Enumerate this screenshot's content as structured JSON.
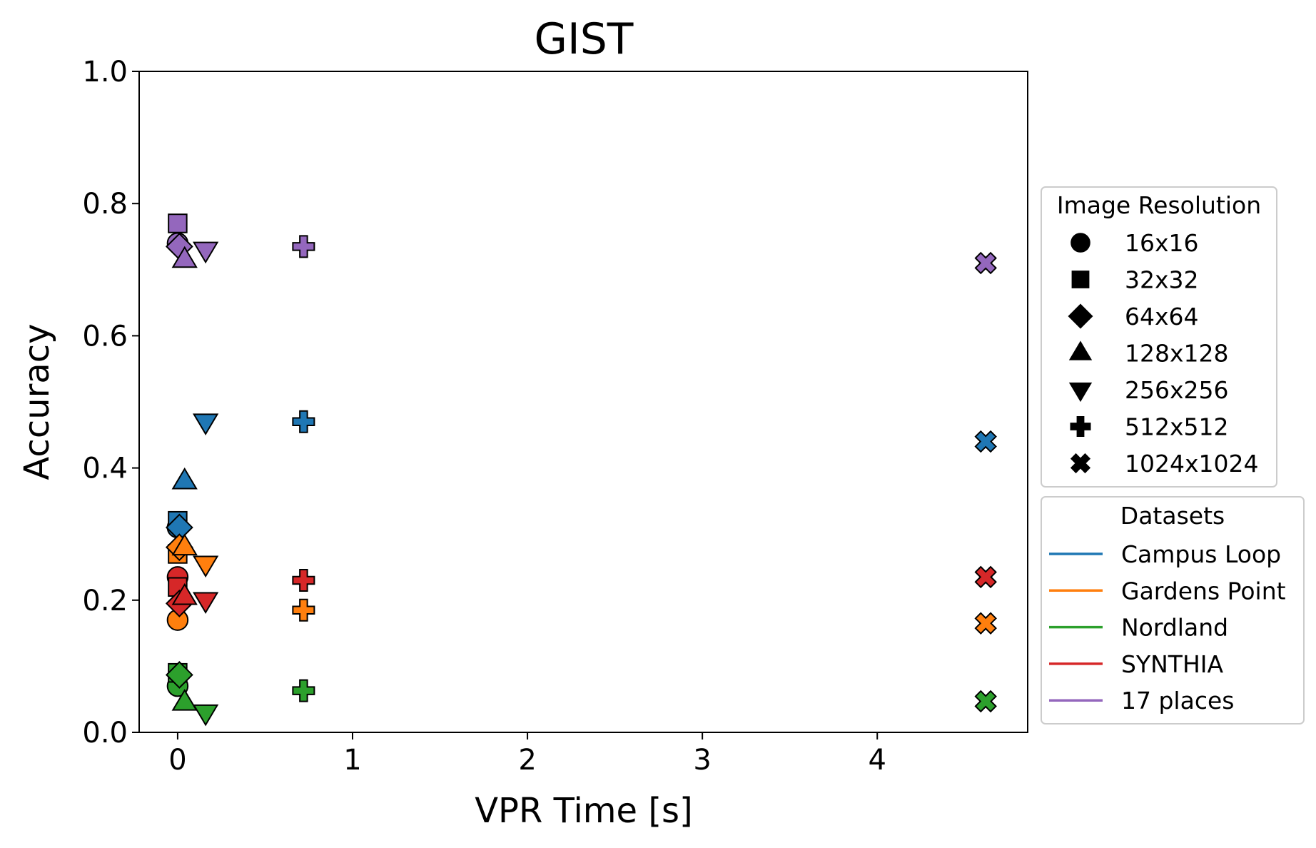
{
  "chart_data": {
    "type": "scatter",
    "title": "GIST",
    "xlabel": "VPR Time [s]",
    "ylabel": "Accuracy",
    "xlim": [
      -0.22,
      4.86
    ],
    "ylim": [
      0.0,
      1.0
    ],
    "xticks": [
      0,
      1,
      2,
      3,
      4
    ],
    "yticks": [
      0.0,
      0.2,
      0.4,
      0.6,
      0.8,
      1.0
    ],
    "xtick_labels": [
      "0",
      "1",
      "2",
      "3",
      "4"
    ],
    "ytick_labels": [
      "0.0",
      "0.2",
      "0.4",
      "0.6",
      "0.8",
      "1.0"
    ],
    "grid": false,
    "legend_resolution": {
      "title": "Image Resolution",
      "placement": "right",
      "entries": [
        {
          "label": "16x16",
          "marker": "circle"
        },
        {
          "label": "32x32",
          "marker": "square"
        },
        {
          "label": "64x64",
          "marker": "diamond"
        },
        {
          "label": "128x128",
          "marker": "triangle-up"
        },
        {
          "label": "256x256",
          "marker": "triangle-down"
        },
        {
          "label": "512x512",
          "marker": "plus"
        },
        {
          "label": "1024x1024",
          "marker": "x"
        }
      ]
    },
    "legend_datasets": {
      "title": "Datasets",
      "placement": "right",
      "entries": [
        {
          "label": "Campus Loop",
          "color": "#1f77b4"
        },
        {
          "label": "Gardens Point",
          "color": "#ff7f0e"
        },
        {
          "label": "Nordland",
          "color": "#2ca02c"
        },
        {
          "label": "SYNTHIA",
          "color": "#d62728"
        },
        {
          "label": "17 places",
          "color": "#9467bd"
        }
      ]
    },
    "series": [
      {
        "name": "Campus Loop",
        "color": "#1f77b4",
        "points": [
          {
            "resolution": "16x16",
            "marker": "circle",
            "x": 0.0,
            "y": 0.31
          },
          {
            "resolution": "32x32",
            "marker": "square",
            "x": 0.0,
            "y": 0.32
          },
          {
            "resolution": "64x64",
            "marker": "diamond",
            "x": 0.01,
            "y": 0.31
          },
          {
            "resolution": "128x128",
            "marker": "triangle-up",
            "x": 0.04,
            "y": 0.38
          },
          {
            "resolution": "256x256",
            "marker": "triangle-down",
            "x": 0.16,
            "y": 0.47
          },
          {
            "resolution": "512x512",
            "marker": "plus",
            "x": 0.72,
            "y": 0.47
          },
          {
            "resolution": "1024x1024",
            "marker": "x",
            "x": 4.62,
            "y": 0.44
          }
        ]
      },
      {
        "name": "17 places",
        "color": "#9467bd",
        "points": [
          {
            "resolution": "16x16",
            "marker": "circle",
            "x": 0.0,
            "y": 0.74
          },
          {
            "resolution": "32x32",
            "marker": "square",
            "x": 0.0,
            "y": 0.77
          },
          {
            "resolution": "64x64",
            "marker": "diamond",
            "x": 0.01,
            "y": 0.735
          },
          {
            "resolution": "128x128",
            "marker": "triangle-up",
            "x": 0.04,
            "y": 0.715
          },
          {
            "resolution": "256x256",
            "marker": "triangle-down",
            "x": 0.16,
            "y": 0.73
          },
          {
            "resolution": "512x512",
            "marker": "plus",
            "x": 0.72,
            "y": 0.735
          },
          {
            "resolution": "1024x1024",
            "marker": "x",
            "x": 4.62,
            "y": 0.71
          }
        ]
      },
      {
        "name": "Gardens Point",
        "color": "#ff7f0e",
        "points": [
          {
            "resolution": "16x16",
            "marker": "circle",
            "x": 0.0,
            "y": 0.17
          },
          {
            "resolution": "32x32",
            "marker": "square",
            "x": 0.0,
            "y": 0.27
          },
          {
            "resolution": "64x64",
            "marker": "diamond",
            "x": 0.01,
            "y": 0.28
          },
          {
            "resolution": "128x128",
            "marker": "triangle-up",
            "x": 0.04,
            "y": 0.28
          },
          {
            "resolution": "256x256",
            "marker": "triangle-down",
            "x": 0.16,
            "y": 0.255
          },
          {
            "resolution": "512x512",
            "marker": "plus",
            "x": 0.72,
            "y": 0.185
          },
          {
            "resolution": "1024x1024",
            "marker": "x",
            "x": 4.62,
            "y": 0.165
          }
        ]
      },
      {
        "name": "SYNTHIA",
        "color": "#d62728",
        "points": [
          {
            "resolution": "16x16",
            "marker": "circle",
            "x": 0.0,
            "y": 0.235
          },
          {
            "resolution": "32x32",
            "marker": "square",
            "x": 0.0,
            "y": 0.22
          },
          {
            "resolution": "64x64",
            "marker": "diamond",
            "x": 0.01,
            "y": 0.195
          },
          {
            "resolution": "128x128",
            "marker": "triangle-up",
            "x": 0.04,
            "y": 0.205
          },
          {
            "resolution": "256x256",
            "marker": "triangle-down",
            "x": 0.16,
            "y": 0.2
          },
          {
            "resolution": "512x512",
            "marker": "plus",
            "x": 0.72,
            "y": 0.23
          },
          {
            "resolution": "1024x1024",
            "marker": "x",
            "x": 4.62,
            "y": 0.235
          }
        ]
      },
      {
        "name": "Nordland",
        "color": "#2ca02c",
        "points": [
          {
            "resolution": "16x16",
            "marker": "circle",
            "x": 0.0,
            "y": 0.07
          },
          {
            "resolution": "32x32",
            "marker": "square",
            "x": 0.0,
            "y": 0.09
          },
          {
            "resolution": "64x64",
            "marker": "diamond",
            "x": 0.01,
            "y": 0.087
          },
          {
            "resolution": "128x128",
            "marker": "triangle-up",
            "x": 0.04,
            "y": 0.045
          },
          {
            "resolution": "256x256",
            "marker": "triangle-down",
            "x": 0.16,
            "y": 0.03
          },
          {
            "resolution": "512x512",
            "marker": "plus",
            "x": 0.72,
            "y": 0.063
          },
          {
            "resolution": "1024x1024",
            "marker": "x",
            "x": 4.62,
            "y": 0.047
          }
        ]
      }
    ]
  }
}
